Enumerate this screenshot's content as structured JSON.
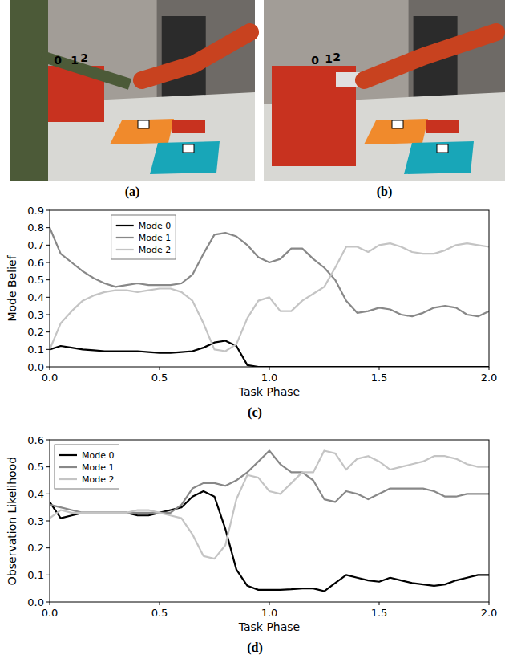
{
  "photos": [
    {
      "caption": "(a)",
      "labels": [
        "0",
        "1",
        "2"
      ]
    },
    {
      "caption": "(b)",
      "labels": [
        "0",
        "1",
        "2"
      ]
    }
  ],
  "chart_data": [
    {
      "type": "line",
      "title": "(c)",
      "x_label": "Task Phase",
      "y_label": "Mode Belief",
      "x": [
        0,
        0.05,
        0.1,
        0.15,
        0.2,
        0.25,
        0.3,
        0.35,
        0.4,
        0.45,
        0.5,
        0.55,
        0.6,
        0.65,
        0.7,
        0.75,
        0.8,
        0.85,
        0.9,
        0.95,
        1,
        1.05,
        1.1,
        1.15,
        1.2,
        1.25,
        1.3,
        1.35,
        1.4,
        1.45,
        1.5,
        1.55,
        1.6,
        1.65,
        1.7,
        1.75,
        1.8,
        1.85,
        1.9,
        1.95,
        2
      ],
      "xlim": [
        0,
        2
      ],
      "xticks": [
        {
          "value": 0,
          "label": "0.0"
        },
        0.5,
        {
          "value": 1,
          "label": "1.0"
        },
        1.5,
        {
          "value": 2,
          "label": "2.0"
        }
      ],
      "ylim": [
        0,
        0.9
      ],
      "yticks": [
        {
          "value": 0,
          "label": "0.0"
        },
        0.1,
        0.2,
        0.3,
        0.4,
        0.5,
        0.6,
        0.7,
        0.8,
        0.9
      ],
      "grid": false,
      "legend": "upper center",
      "series": [
        {
          "name": "Mode 0",
          "color": "#000000",
          "values": [
            0.1,
            0.12,
            0.11,
            0.1,
            0.095,
            0.09,
            0.09,
            0.09,
            0.09,
            0.085,
            0.08,
            0.08,
            0.085,
            0.09,
            0.11,
            0.14,
            0.15,
            0.12,
            0.01,
            0,
            0,
            0,
            0,
            0,
            0,
            0,
            0,
            0,
            0,
            0,
            0,
            0,
            0,
            0,
            0,
            0,
            0,
            0,
            0,
            0,
            0
          ]
        },
        {
          "name": "Mode 1",
          "color": "#888888",
          "values": [
            0.8,
            0.65,
            0.6,
            0.55,
            0.51,
            0.48,
            0.46,
            0.47,
            0.48,
            0.47,
            0.47,
            0.47,
            0.48,
            0.53,
            0.65,
            0.76,
            0.77,
            0.75,
            0.7,
            0.63,
            0.6,
            0.62,
            0.68,
            0.68,
            0.62,
            0.57,
            0.5,
            0.38,
            0.31,
            0.32,
            0.34,
            0.33,
            0.3,
            0.29,
            0.31,
            0.34,
            0.35,
            0.34,
            0.3,
            0.29,
            0.32
          ]
        },
        {
          "name": "Mode 2",
          "color": "#c4c4c4",
          "values": [
            0.1,
            0.25,
            0.32,
            0.38,
            0.41,
            0.43,
            0.44,
            0.44,
            0.43,
            0.44,
            0.45,
            0.45,
            0.43,
            0.38,
            0.25,
            0.1,
            0.09,
            0.13,
            0.28,
            0.38,
            0.4,
            0.32,
            0.32,
            0.38,
            0.42,
            0.46,
            0.57,
            0.69,
            0.69,
            0.66,
            0.7,
            0.71,
            0.69,
            0.66,
            0.65,
            0.65,
            0.67,
            0.7,
            0.71,
            0.7,
            0.69
          ]
        }
      ]
    },
    {
      "type": "line",
      "title": "(d)",
      "x_label": "Task Phase",
      "y_label": "Observation Likelihood",
      "x": [
        0,
        0.05,
        0.1,
        0.15,
        0.2,
        0.25,
        0.3,
        0.35,
        0.4,
        0.45,
        0.5,
        0.55,
        0.6,
        0.65,
        0.7,
        0.75,
        0.8,
        0.85,
        0.9,
        0.95,
        1,
        1.05,
        1.1,
        1.15,
        1.2,
        1.25,
        1.3,
        1.35,
        1.4,
        1.45,
        1.5,
        1.55,
        1.6,
        1.65,
        1.7,
        1.75,
        1.8,
        1.85,
        1.9,
        1.95,
        2
      ],
      "xlim": [
        0,
        2
      ],
      "xticks": [
        {
          "value": 0,
          "label": "0.0"
        },
        0.5,
        {
          "value": 1,
          "label": "1.0"
        },
        1.5,
        {
          "value": 2,
          "label": "2.0"
        }
      ],
      "ylim": [
        0,
        0.6
      ],
      "yticks": [
        {
          "value": 0,
          "label": "0.0"
        },
        0.1,
        0.2,
        0.3,
        0.4,
        0.5,
        0.6
      ],
      "grid": false,
      "legend": "upper left",
      "series": [
        {
          "name": "Mode 0",
          "color": "#000000",
          "values": [
            0.37,
            0.31,
            0.32,
            0.33,
            0.33,
            0.33,
            0.33,
            0.33,
            0.32,
            0.32,
            0.33,
            0.34,
            0.35,
            0.39,
            0.41,
            0.39,
            0.27,
            0.12,
            0.06,
            0.045,
            0.045,
            0.045,
            0.047,
            0.05,
            0.05,
            0.04,
            0.07,
            0.1,
            0.09,
            0.08,
            0.075,
            0.09,
            0.08,
            0.07,
            0.065,
            0.06,
            0.065,
            0.08,
            0.09,
            0.1,
            0.1
          ]
        },
        {
          "name": "Mode 1",
          "color": "#888888",
          "values": [
            0.36,
            0.35,
            0.34,
            0.33,
            0.33,
            0.33,
            0.33,
            0.33,
            0.33,
            0.33,
            0.33,
            0.33,
            0.36,
            0.42,
            0.44,
            0.44,
            0.43,
            0.45,
            0.48,
            0.52,
            0.56,
            0.51,
            0.48,
            0.48,
            0.45,
            0.38,
            0.37,
            0.41,
            0.4,
            0.38,
            0.4,
            0.42,
            0.42,
            0.42,
            0.42,
            0.41,
            0.39,
            0.39,
            0.4,
            0.4,
            0.4
          ]
        },
        {
          "name": "Mode 2",
          "color": "#c4c4c4",
          "values": [
            0.31,
            0.34,
            0.33,
            0.33,
            0.33,
            0.33,
            0.33,
            0.33,
            0.34,
            0.34,
            0.33,
            0.32,
            0.31,
            0.25,
            0.17,
            0.16,
            0.21,
            0.38,
            0.47,
            0.46,
            0.41,
            0.4,
            0.44,
            0.48,
            0.48,
            0.56,
            0.55,
            0.49,
            0.53,
            0.54,
            0.52,
            0.49,
            0.5,
            0.51,
            0.52,
            0.54,
            0.54,
            0.53,
            0.51,
            0.5,
            0.5
          ]
        }
      ]
    }
  ]
}
